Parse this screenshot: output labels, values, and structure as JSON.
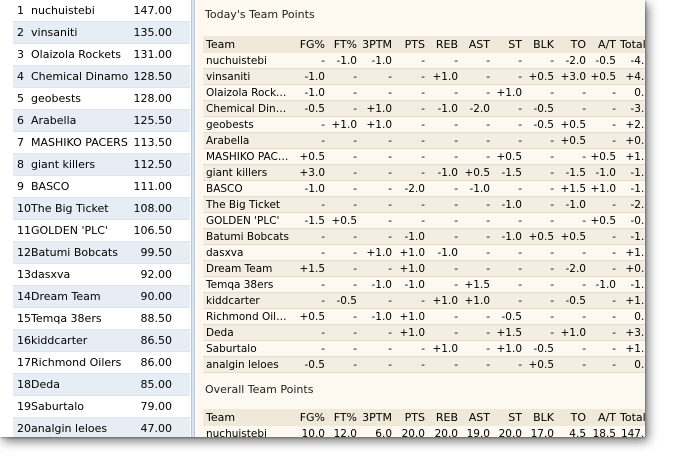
{
  "standings": [
    {
      "rank": "1",
      "team": "nuchuistebi",
      "points": "147.00"
    },
    {
      "rank": "2",
      "team": "vinsaniti",
      "points": "135.00"
    },
    {
      "rank": "3",
      "team": "Olaizola Rockets",
      "points": "131.00"
    },
    {
      "rank": "4",
      "team": "Chemical Dinamo",
      "points": "128.50"
    },
    {
      "rank": "5",
      "team": "geobests",
      "points": "128.00"
    },
    {
      "rank": "6",
      "team": "Arabella",
      "points": "125.50"
    },
    {
      "rank": "7",
      "team": "MASHIKO PACERS",
      "points": "113.50"
    },
    {
      "rank": "8",
      "team": "giant killers",
      "points": "112.50"
    },
    {
      "rank": "9",
      "team": "BASCO",
      "points": "111.00"
    },
    {
      "rank": "10",
      "team": "The Big Ticket",
      "points": "108.00"
    },
    {
      "rank": "11",
      "team": "GOLDEN 'PLC'",
      "points": "106.50"
    },
    {
      "rank": "12",
      "team": "Batumi Bobcats",
      "points": "99.50"
    },
    {
      "rank": "13",
      "team": "dasxva",
      "points": "92.00"
    },
    {
      "rank": "14",
      "team": "Dream Team",
      "points": "90.00"
    },
    {
      "rank": "15",
      "team": "Temqa 38ers",
      "points": "88.50"
    },
    {
      "rank": "16",
      "team": "kiddcarter",
      "points": "86.50"
    },
    {
      "rank": "17",
      "team": "Richmond Oilers",
      "points": "86.00"
    },
    {
      "rank": "18",
      "team": "Deda",
      "points": "85.00"
    },
    {
      "rank": "19",
      "team": "Saburtalo",
      "points": "79.00"
    },
    {
      "rank": "20",
      "team": "analgin leloes",
      "points": "47.00"
    }
  ],
  "today": {
    "title": "Today's Team Points",
    "columns": [
      "Team",
      "FG%",
      "FT%",
      "3PTM",
      "PTS",
      "REB",
      "AST",
      "ST",
      "BLK",
      "TO",
      "A/T",
      "Totals"
    ],
    "rows": [
      [
        "nuchuistebi",
        "-",
        "-1.0",
        "-1.0",
        "-",
        "-",
        "-",
        "-",
        "-",
        "-2.0",
        "-0.5",
        "-4.5"
      ],
      [
        "vinsaniti",
        "-1.0",
        "-",
        "-",
        "-",
        "+1.0",
        "-",
        "-",
        "+0.5",
        "+3.0",
        "+0.5",
        "+4.0"
      ],
      [
        "Olaizola Rockets",
        "-1.0",
        "-",
        "-",
        "-",
        "-",
        "-",
        "+1.0",
        "-",
        "-",
        "-",
        "0.0"
      ],
      [
        "Chemical Dinamo",
        "-0.5",
        "-",
        "+1.0",
        "-",
        "-1.0",
        "-2.0",
        "-",
        "-0.5",
        "-",
        "-",
        "-3.0"
      ],
      [
        "geobests",
        "-",
        "+1.0",
        "+1.0",
        "-",
        "-",
        "-",
        "-",
        "-0.5",
        "+0.5",
        "-",
        "+2.0"
      ],
      [
        "Arabella",
        "-",
        "-",
        "-",
        "-",
        "-",
        "-",
        "-",
        "-",
        "+0.5",
        "-",
        "+0.5"
      ],
      [
        "MASHIKO PACERS",
        "+0.5",
        "-",
        "-",
        "-",
        "-",
        "-",
        "+0.5",
        "-",
        "-",
        "+0.5",
        "+1.5"
      ],
      [
        "giant killers",
        "+3.0",
        "-",
        "-",
        "-",
        "-1.0",
        "+0.5",
        "-1.5",
        "-",
        "-1.5",
        "-1.0",
        "-1.5"
      ],
      [
        "BASCO",
        "-1.0",
        "-",
        "-",
        "-2.0",
        "-",
        "-1.0",
        "-",
        "-",
        "+1.5",
        "+1.0",
        "-1.5"
      ],
      [
        "The Big Ticket",
        "-",
        "-",
        "-",
        "-",
        "-",
        "-",
        "-1.0",
        "-",
        "-1.0",
        "-",
        "-2.0"
      ],
      [
        "GOLDEN 'PLC'",
        "-1.5",
        "+0.5",
        "-",
        "-",
        "-",
        "-",
        "-",
        "-",
        "-",
        "+0.5",
        "-0.5"
      ],
      [
        "Batumi Bobcats",
        "-",
        "-",
        "-",
        "-1.0",
        "-",
        "-",
        "-1.0",
        "+0.5",
        "+0.5",
        "-",
        "-1.0"
      ],
      [
        "dasxva",
        "-",
        "-",
        "+1.0",
        "+1.0",
        "-1.0",
        "-",
        "-",
        "-",
        "-",
        "-",
        "+1.0"
      ],
      [
        "Dream Team",
        "+1.5",
        "-",
        "-",
        "+1.0",
        "-",
        "-",
        "-",
        "-",
        "-2.0",
        "-",
        "+0.5"
      ],
      [
        "Temqa 38ers",
        "-",
        "-",
        "-1.0",
        "-1.0",
        "-",
        "+1.5",
        "-",
        "-",
        "-",
        "-1.0",
        "-1.5"
      ],
      [
        "kiddcarter",
        "-",
        "-0.5",
        "-",
        "-",
        "+1.0",
        "+1.0",
        "-",
        "-",
        "-0.5",
        "-",
        "+1.0"
      ],
      [
        "Richmond Oilers",
        "+0.5",
        "-",
        "-1.0",
        "+1.0",
        "-",
        "-",
        "-0.5",
        "-",
        "-",
        "-",
        "0.0"
      ],
      [
        "Deda",
        "-",
        "-",
        "-",
        "+1.0",
        "-",
        "-",
        "+1.5",
        "-",
        "+1.0",
        "-",
        "+3.5"
      ],
      [
        "Saburtalo",
        "-",
        "-",
        "-",
        "-",
        "+1.0",
        "-",
        "+1.0",
        "-0.5",
        "-",
        "-",
        "+1.5"
      ],
      [
        "analgin leloes",
        "-0.5",
        "-",
        "-",
        "-",
        "-",
        "-",
        "-",
        "+0.5",
        "-",
        "-",
        "0.0"
      ]
    ]
  },
  "overall": {
    "title": "Overall Team Points",
    "columns": [
      "Team",
      "FG%",
      "FT%",
      "3PTM",
      "PTS",
      "REB",
      "AST",
      "ST",
      "BLK",
      "TO",
      "A/T",
      "Totals"
    ],
    "rows": [
      [
        "nuchuistebi",
        "10.0",
        "12.0",
        "6.0",
        "20.0",
        "20.0",
        "19.0",
        "20.0",
        "17.0",
        "4.5",
        "18.5",
        "147.0"
      ]
    ]
  }
}
